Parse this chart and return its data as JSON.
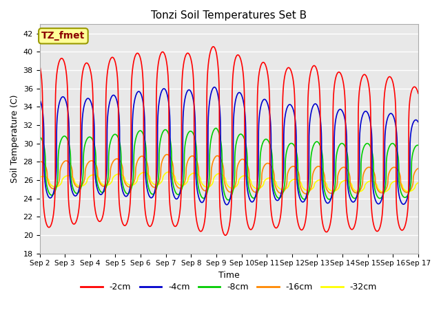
{
  "title": "Tonzi Soil Temperatures Set B",
  "xlabel": "Time",
  "ylabel": "Soil Temperature (C)",
  "annotation_text": "TZ_fmet",
  "annotation_color": "#8B0000",
  "annotation_bg": "#FFFF99",
  "annotation_border": "#999900",
  "ylim": [
    18,
    43
  ],
  "xlim": [
    0,
    15
  ],
  "xtick_labels": [
    "Sep 2",
    "Sep 3",
    "Sep 4",
    "Sep 5",
    "Sep 6",
    "Sep 7",
    "Sep 8",
    "Sep 9",
    "Sep 10",
    "Sep 11",
    "Sep 12",
    "Sep 13",
    "Sep 14",
    "Sep 15",
    "Sep 16",
    "Sep 17"
  ],
  "xtick_positions": [
    0,
    1,
    2,
    3,
    4,
    5,
    6,
    7,
    8,
    9,
    10,
    11,
    12,
    13,
    14,
    15
  ],
  "series": {
    "-2cm": {
      "color": "#FF0000",
      "linewidth": 1.2
    },
    "-4cm": {
      "color": "#0000CC",
      "linewidth": 1.2
    },
    "-8cm": {
      "color": "#00CC00",
      "linewidth": 1.2
    },
    "-16cm": {
      "color": "#FF8800",
      "linewidth": 1.2
    },
    "-32cm": {
      "color": "#FFFF00",
      "linewidth": 1.2
    }
  },
  "legend_order": [
    "-2cm",
    "-4cm",
    "-8cm",
    "-16cm",
    "-32cm"
  ],
  "bg_color": "#E8E8E8",
  "fig_bg": "#FFFFFF",
  "grid_color": "#FFFFFF",
  "grid_linewidth": 1.0
}
